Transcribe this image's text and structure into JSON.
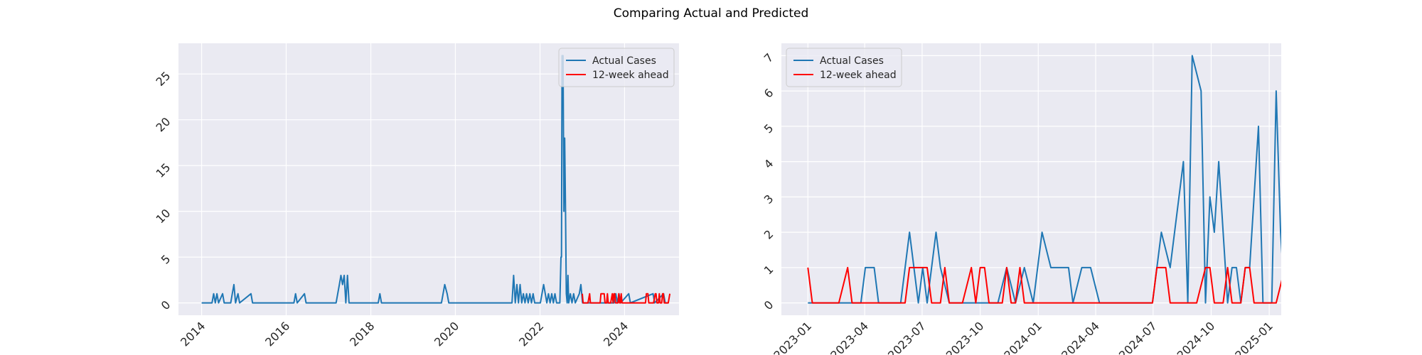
{
  "figure": {
    "title": "Comparing Actual and Predicted"
  },
  "colors": {
    "actual": "#1f77b4",
    "predicted": "#ff0000",
    "axes_bg": "#eaeaf2",
    "grid": "#ffffff"
  },
  "chart_data": [
    {
      "type": "line",
      "title": "",
      "xlabel": "",
      "ylabel": "",
      "x_scale": "date",
      "xlim": [
        "2013-06-15",
        "2025-04-15"
      ],
      "ylim": [
        -1.35,
        28.35
      ],
      "x_ticks": [
        {
          "date": "2014-01-01",
          "label": "2014"
        },
        {
          "date": "2016-01-01",
          "label": "2016"
        },
        {
          "date": "2018-01-01",
          "label": "2018"
        },
        {
          "date": "2020-01-01",
          "label": "2020"
        },
        {
          "date": "2022-01-01",
          "label": "2022"
        },
        {
          "date": "2024-01-01",
          "label": "2024"
        }
      ],
      "y_ticks": [
        {
          "value": 0,
          "label": "0"
        },
        {
          "value": 5,
          "label": "5"
        },
        {
          "value": 10,
          "label": "10"
        },
        {
          "value": 15,
          "label": "15"
        },
        {
          "value": 20,
          "label": "20"
        },
        {
          "value": 25,
          "label": "25"
        }
      ],
      "grid": true,
      "legend": {
        "position": "top-right",
        "entries": [
          "Actual Cases",
          "12-week ahead"
        ]
      },
      "series": [
        {
          "name": "Actual Cases",
          "color": "#1f77b4",
          "points": [
            [
              "2014-01-01",
              0
            ],
            [
              "2014-04-01",
              0
            ],
            [
              "2014-04-15",
              1
            ],
            [
              "2014-04-29",
              0
            ],
            [
              "2014-05-13",
              1
            ],
            [
              "2014-05-27",
              0
            ],
            [
              "2014-07-01",
              1
            ],
            [
              "2014-07-15",
              0
            ],
            [
              "2014-09-09",
              0
            ],
            [
              "2014-09-23",
              1
            ],
            [
              "2014-10-07",
              2
            ],
            [
              "2014-10-21",
              0
            ],
            [
              "2014-11-11",
              1
            ],
            [
              "2014-11-25",
              0
            ],
            [
              "2015-03-03",
              1
            ],
            [
              "2015-03-17",
              0
            ],
            [
              "2016-03-08",
              0
            ],
            [
              "2016-03-22",
              1
            ],
            [
              "2016-04-05",
              0
            ],
            [
              "2016-06-07",
              1
            ],
            [
              "2016-06-21",
              0
            ],
            [
              "2017-03-07",
              0
            ],
            [
              "2017-03-21",
              1
            ],
            [
              "2017-04-04",
              2
            ],
            [
              "2017-04-18",
              3
            ],
            [
              "2017-05-02",
              2
            ],
            [
              "2017-05-16",
              3
            ],
            [
              "2017-05-30",
              0
            ],
            [
              "2017-06-13",
              3
            ],
            [
              "2017-06-27",
              0
            ],
            [
              "2018-03-06",
              0
            ],
            [
              "2018-03-20",
              1
            ],
            [
              "2018-04-03",
              0
            ],
            [
              "2019-09-03",
              0
            ],
            [
              "2019-09-17",
              1
            ],
            [
              "2019-10-01",
              2
            ],
            [
              "2019-10-22",
              1
            ],
            [
              "2019-11-05",
              0
            ],
            [
              "2021-05-04",
              0
            ],
            [
              "2021-05-18",
              3
            ],
            [
              "2021-06-01",
              0
            ],
            [
              "2021-06-15",
              2
            ],
            [
              "2021-06-29",
              0
            ],
            [
              "2021-07-13",
              2
            ],
            [
              "2021-07-27",
              0
            ],
            [
              "2021-08-10",
              1
            ],
            [
              "2021-08-24",
              0
            ],
            [
              "2021-09-07",
              1
            ],
            [
              "2021-09-21",
              0
            ],
            [
              "2021-10-05",
              1
            ],
            [
              "2021-10-19",
              0
            ],
            [
              "2021-11-02",
              1
            ],
            [
              "2021-11-16",
              0
            ],
            [
              "2022-01-04",
              0
            ],
            [
              "2022-01-18",
              1
            ],
            [
              "2022-02-01",
              2
            ],
            [
              "2022-02-15",
              1
            ],
            [
              "2022-03-01",
              0
            ],
            [
              "2022-03-15",
              1
            ],
            [
              "2022-03-29",
              0
            ],
            [
              "2022-04-12",
              1
            ],
            [
              "2022-04-26",
              0
            ],
            [
              "2022-05-10",
              1
            ],
            [
              "2022-05-24",
              0
            ],
            [
              "2022-06-21",
              0
            ],
            [
              "2022-07-01",
              5
            ],
            [
              "2022-07-05",
              5
            ],
            [
              "2022-07-10",
              27
            ],
            [
              "2022-07-19",
              27
            ],
            [
              "2022-07-26",
              10
            ],
            [
              "2022-08-02",
              18
            ],
            [
              "2022-08-09",
              10
            ],
            [
              "2022-08-16",
              1
            ],
            [
              "2022-08-23",
              0
            ],
            [
              "2022-08-30",
              3
            ],
            [
              "2022-09-06",
              0
            ],
            [
              "2022-09-20",
              1
            ],
            [
              "2022-10-04",
              0
            ],
            [
              "2022-10-18",
              1
            ],
            [
              "2022-11-01",
              0
            ],
            [
              "2022-12-06",
              1
            ],
            [
              "2022-12-20",
              2
            ],
            [
              "2023-01-03",
              0
            ],
            [
              "2023-10-03",
              0
            ],
            [
              "2023-10-17",
              1
            ],
            [
              "2023-10-31",
              0
            ],
            [
              "2023-11-14",
              1
            ],
            [
              "2023-11-28",
              0
            ],
            [
              "2024-02-06",
              1
            ],
            [
              "2024-02-20",
              0
            ],
            [
              "2024-09-03",
              1
            ],
            [
              "2024-09-17",
              0
            ],
            [
              "2024-12-03",
              1
            ],
            [
              "2024-12-17",
              0
            ],
            [
              "2025-01-07",
              0
            ]
          ],
          "note_detail_series": "actual_detail"
        },
        {
          "name": "12-week ahead",
          "color": "#ff0000",
          "points_ref": "pred_detail"
        }
      ]
    },
    {
      "type": "line",
      "title": "",
      "xlabel": "",
      "ylabel": "",
      "x_scale": "date",
      "xlim": [
        "2022-11-20",
        "2025-01-20"
      ],
      "ylim": [
        -0.35,
        7.35
      ],
      "x_ticks": [
        {
          "date": "2023-01-01",
          "label": "2023-01"
        },
        {
          "date": "2023-04-01",
          "label": "2023-04"
        },
        {
          "date": "2023-07-01",
          "label": "2023-07"
        },
        {
          "date": "2023-10-01",
          "label": "2023-10"
        },
        {
          "date": "2024-01-01",
          "label": "2024-01"
        },
        {
          "date": "2024-04-01",
          "label": "2024-04"
        },
        {
          "date": "2024-07-01",
          "label": "2024-07"
        },
        {
          "date": "2024-10-01",
          "label": "2024-10"
        },
        {
          "date": "2025-01-01",
          "label": "2025-01"
        }
      ],
      "y_ticks": [
        {
          "value": 0,
          "label": "0"
        },
        {
          "value": 1,
          "label": "1"
        },
        {
          "value": 2,
          "label": "2"
        },
        {
          "value": 3,
          "label": "3"
        },
        {
          "value": 4,
          "label": "4"
        },
        {
          "value": 5,
          "label": "5"
        },
        {
          "value": 6,
          "label": "6"
        },
        {
          "value": 7,
          "label": "7"
        }
      ],
      "grid": true,
      "legend": {
        "position": "top-left",
        "entries": [
          "Actual Cases",
          "12-week ahead"
        ]
      },
      "series": [
        {
          "name": "Actual Cases",
          "color": "#1f77b4",
          "points": [
            [
              "2023-01-01",
              0
            ],
            [
              "2023-01-29",
              0
            ],
            [
              "2023-02-12",
              0
            ],
            [
              "2023-03-05",
              0
            ],
            [
              "2023-03-26",
              0
            ],
            [
              "2023-04-02",
              1
            ],
            [
              "2023-04-16",
              1
            ],
            [
              "2023-04-23",
              0
            ],
            [
              "2023-05-14",
              0
            ],
            [
              "2023-05-28",
              0
            ],
            [
              "2023-06-11",
              2
            ],
            [
              "2023-06-25",
              0
            ],
            [
              "2023-07-02",
              1
            ],
            [
              "2023-07-09",
              0
            ],
            [
              "2023-07-23",
              2
            ],
            [
              "2023-07-30",
              1
            ],
            [
              "2023-08-13",
              0
            ],
            [
              "2023-09-03",
              0
            ],
            [
              "2023-09-24",
              0
            ],
            [
              "2023-10-15",
              0
            ],
            [
              "2023-10-29",
              0
            ],
            [
              "2023-11-12",
              1
            ],
            [
              "2023-11-26",
              0
            ],
            [
              "2023-12-10",
              1
            ],
            [
              "2023-12-24",
              0
            ],
            [
              "2024-01-07",
              2
            ],
            [
              "2024-01-21",
              1
            ],
            [
              "2024-02-04",
              1
            ],
            [
              "2024-02-18",
              1
            ],
            [
              "2024-02-25",
              0
            ],
            [
              "2024-03-10",
              1
            ],
            [
              "2024-03-24",
              1
            ],
            [
              "2024-04-07",
              0
            ],
            [
              "2024-04-28",
              0
            ],
            [
              "2024-05-19",
              0
            ],
            [
              "2024-06-09",
              0
            ],
            [
              "2024-06-30",
              0
            ],
            [
              "2024-07-14",
              2
            ],
            [
              "2024-07-28",
              1
            ],
            [
              "2024-08-04",
              2
            ],
            [
              "2024-08-18",
              4
            ],
            [
              "2024-08-25",
              0
            ],
            [
              "2024-09-01",
              7
            ],
            [
              "2024-09-15",
              6
            ],
            [
              "2024-09-22",
              0
            ],
            [
              "2024-09-29",
              3
            ],
            [
              "2024-10-06",
              2
            ],
            [
              "2024-10-13",
              4
            ],
            [
              "2024-10-20",
              2
            ],
            [
              "2024-10-27",
              0
            ],
            [
              "2024-11-03",
              1
            ],
            [
              "2024-11-10",
              1
            ],
            [
              "2024-11-17",
              0
            ],
            [
              "2024-11-24",
              1
            ],
            [
              "2024-12-01",
              1
            ],
            [
              "2024-12-15",
              5
            ],
            [
              "2024-12-22",
              0
            ],
            [
              "2025-01-05",
              0
            ],
            [
              "2025-01-12",
              6
            ],
            [
              "2025-01-19",
              2
            ],
            [
              "2025-01-26",
              0
            ]
          ]
        },
        {
          "name": "12-week ahead",
          "color": "#ff0000",
          "points": [
            [
              "2023-01-01",
              1
            ],
            [
              "2023-01-08",
              0
            ],
            [
              "2023-01-29",
              0
            ],
            [
              "2023-02-19",
              0
            ],
            [
              "2023-03-05",
              1
            ],
            [
              "2023-03-12",
              0
            ],
            [
              "2023-04-02",
              0
            ],
            [
              "2023-05-14",
              0
            ],
            [
              "2023-06-04",
              0
            ],
            [
              "2023-06-11",
              1
            ],
            [
              "2023-06-25",
              1
            ],
            [
              "2023-07-09",
              1
            ],
            [
              "2023-07-16",
              0
            ],
            [
              "2023-07-30",
              0
            ],
            [
              "2023-08-06",
              1
            ],
            [
              "2023-08-13",
              0
            ],
            [
              "2023-09-03",
              0
            ],
            [
              "2023-09-17",
              1
            ],
            [
              "2023-09-24",
              0
            ],
            [
              "2023-10-01",
              1
            ],
            [
              "2023-10-08",
              1
            ],
            [
              "2023-10-15",
              0
            ],
            [
              "2023-11-05",
              0
            ],
            [
              "2023-11-12",
              1
            ],
            [
              "2023-11-19",
              0
            ],
            [
              "2023-11-26",
              0
            ],
            [
              "2023-12-03",
              1
            ],
            [
              "2023-12-10",
              0
            ],
            [
              "2023-12-17",
              0
            ],
            [
              "2024-01-28",
              0
            ],
            [
              "2024-02-25",
              0
            ],
            [
              "2024-04-07",
              0
            ],
            [
              "2024-05-19",
              0
            ],
            [
              "2024-06-16",
              0
            ],
            [
              "2024-06-30",
              0
            ],
            [
              "2024-07-07",
              1
            ],
            [
              "2024-07-21",
              1
            ],
            [
              "2024-07-28",
              0
            ],
            [
              "2024-09-08",
              0
            ],
            [
              "2024-09-22",
              1
            ],
            [
              "2024-09-29",
              1
            ],
            [
              "2024-10-06",
              0
            ],
            [
              "2024-10-20",
              0
            ],
            [
              "2024-10-27",
              1
            ],
            [
              "2024-11-03",
              0
            ],
            [
              "2024-11-17",
              0
            ],
            [
              "2024-11-24",
              1
            ],
            [
              "2024-12-01",
              1
            ],
            [
              "2024-12-08",
              0
            ],
            [
              "2025-01-12",
              0
            ],
            [
              "2025-01-26",
              1
            ]
          ]
        }
      ]
    }
  ]
}
